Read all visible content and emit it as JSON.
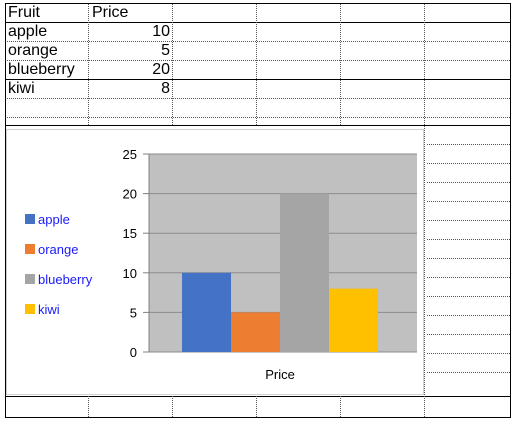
{
  "sheet": {
    "headers": [
      "Fruit",
      "Price"
    ],
    "rows": [
      {
        "fruit": "apple",
        "price": "10"
      },
      {
        "fruit": "orange",
        "price": "5"
      },
      {
        "fruit": "blueberry",
        "price": "20"
      },
      {
        "fruit": "kiwi",
        "price": "8"
      }
    ]
  },
  "chart_data": {
    "type": "bar",
    "categories": [
      "Price"
    ],
    "series": [
      {
        "name": "apple",
        "values": [
          10
        ],
        "color": "#4472c4"
      },
      {
        "name": "orange",
        "values": [
          5
        ],
        "color": "#ed7d31"
      },
      {
        "name": "blueberry",
        "values": [
          20
        ],
        "color": "#a5a5a5"
      },
      {
        "name": "kiwi",
        "values": [
          8
        ],
        "color": "#ffc000"
      }
    ],
    "xlabel": "Price",
    "ylabel": "",
    "ylim": [
      0,
      25
    ],
    "yticks": [
      0,
      5,
      10,
      15,
      20,
      25
    ],
    "grid": true,
    "plot_background": "#c0c0c0",
    "legend": "left"
  }
}
